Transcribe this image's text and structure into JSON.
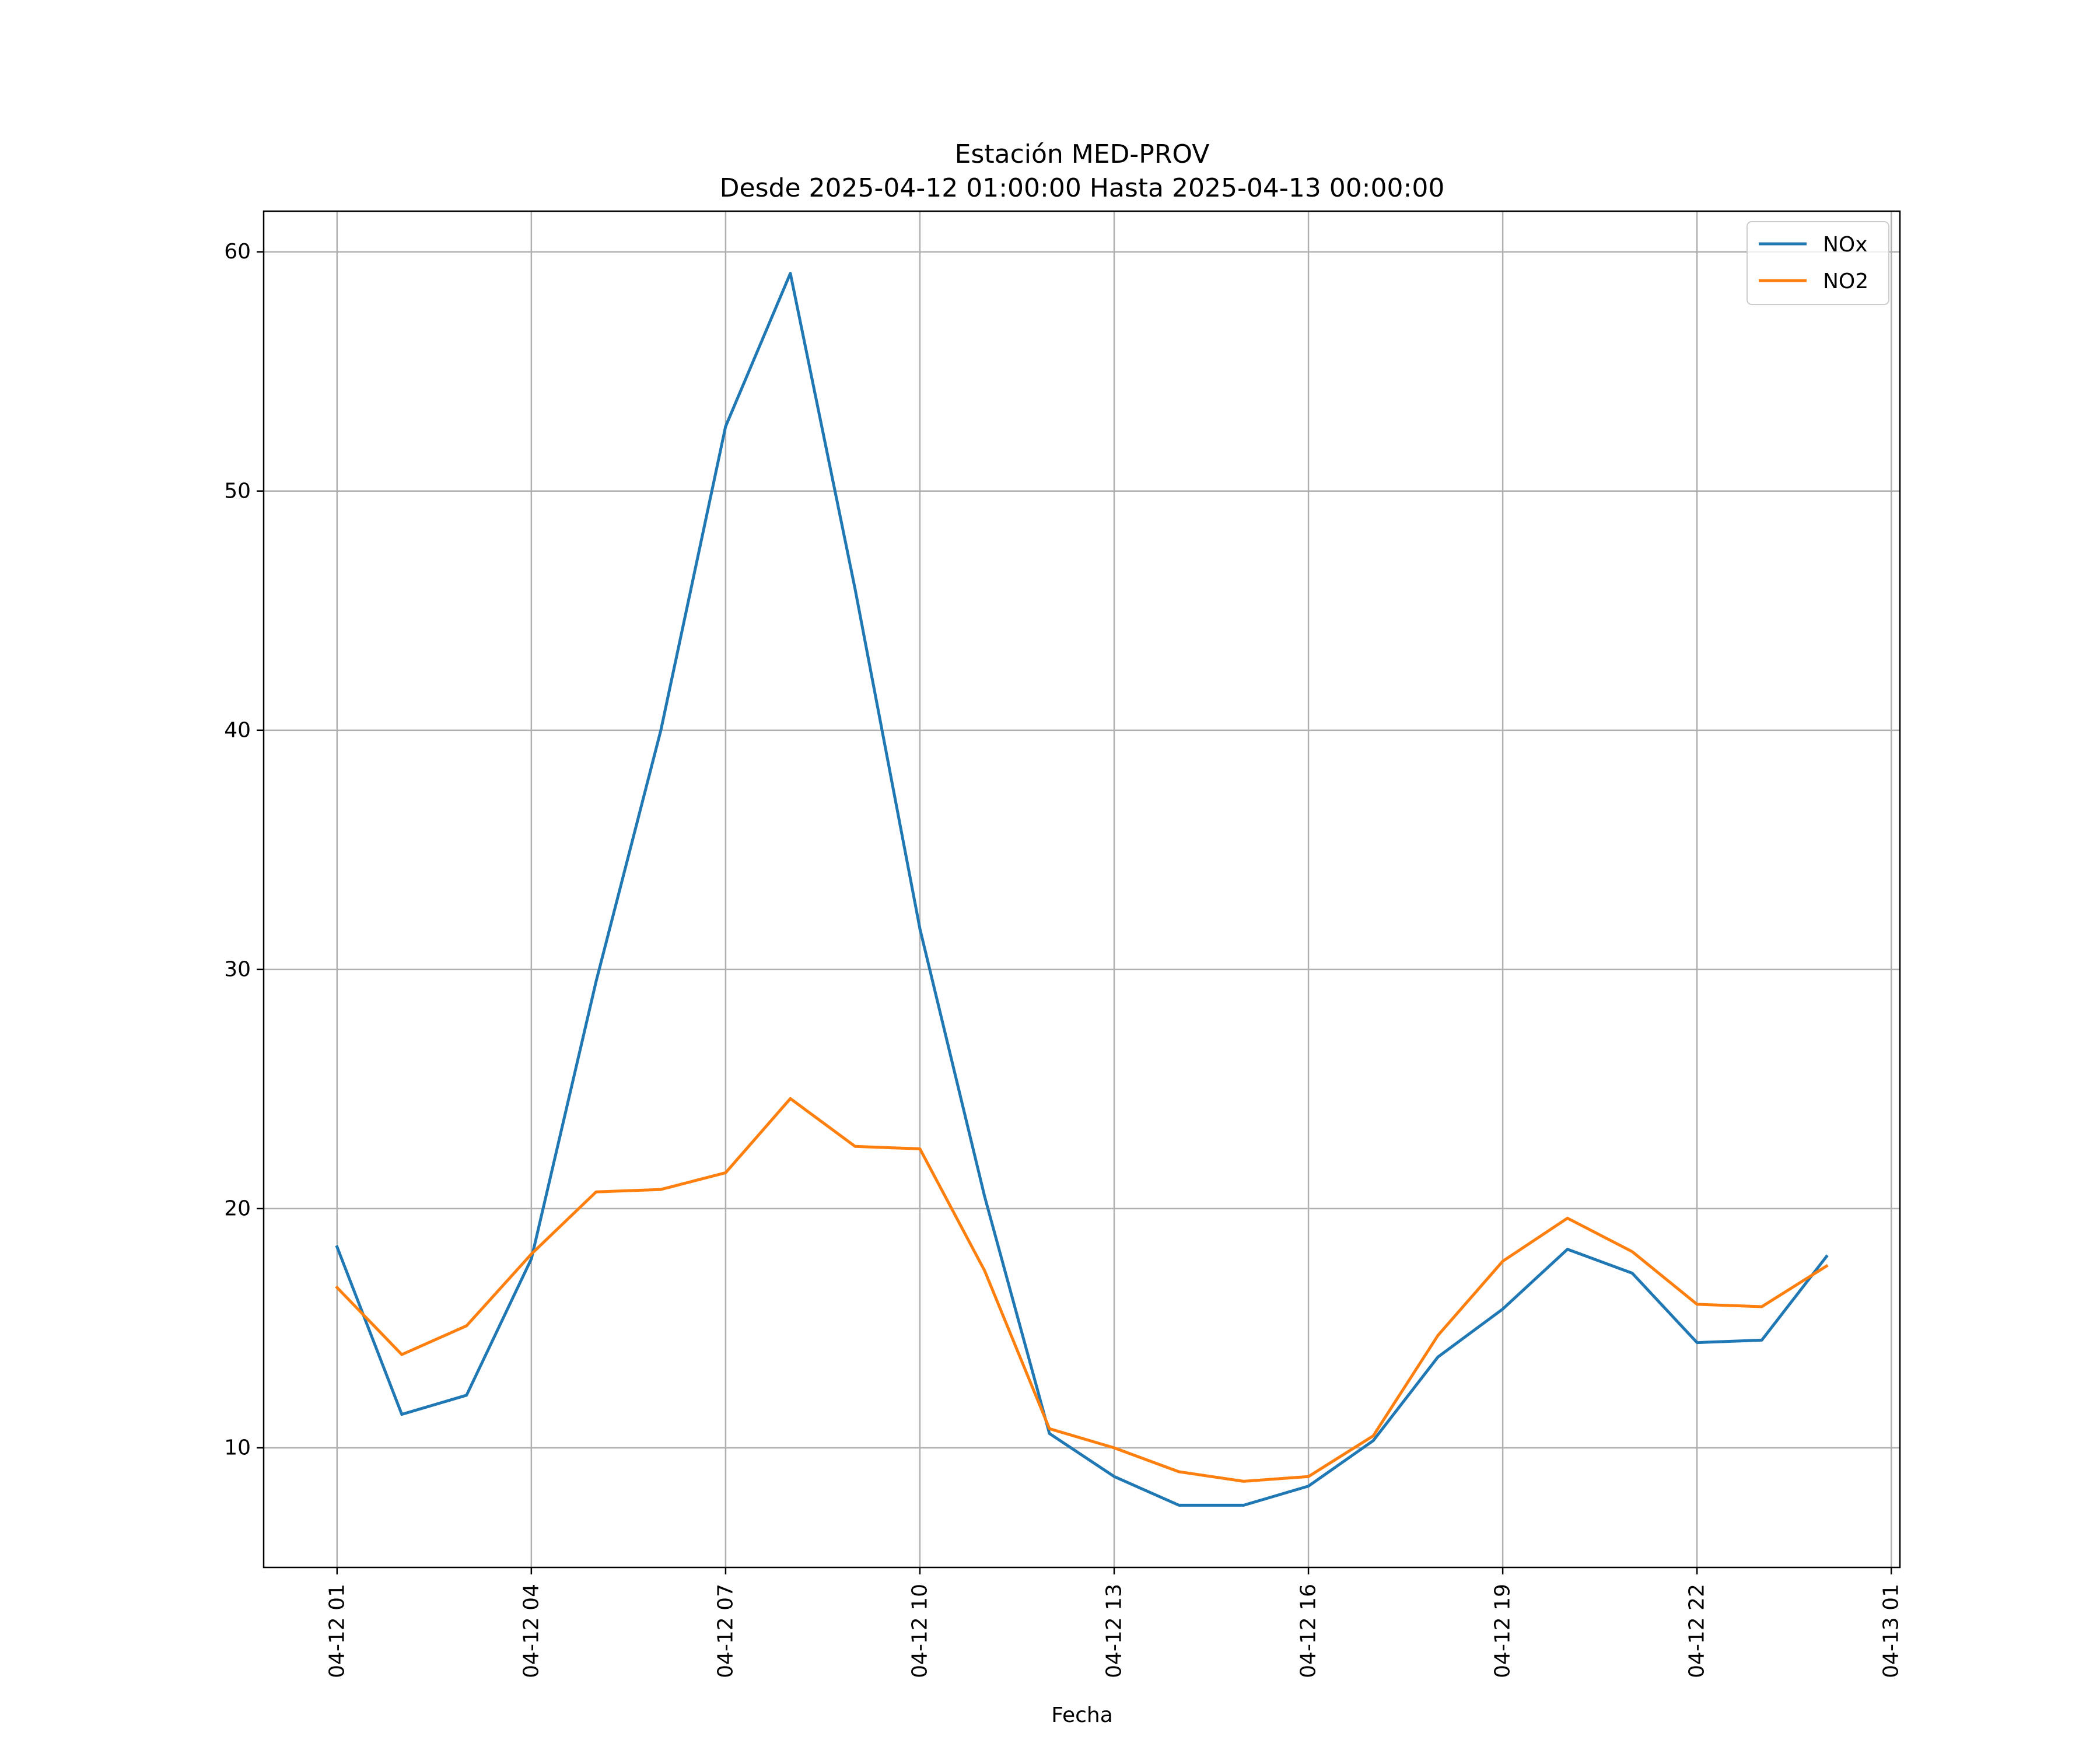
{
  "chart_data": {
    "type": "line",
    "title": "Estación MED-PROV",
    "subtitle": "Desde 2025-04-12 01:00:00 Hasta 2025-04-13 00:00:00",
    "xlabel": "Fecha",
    "ylabel": "",
    "x_tick_labels": [
      "04-12 01",
      "04-12 04",
      "04-12 07",
      "04-12 10",
      "04-12 13",
      "04-12 16",
      "04-12 19",
      "04-12 22",
      "04-13 01"
    ],
    "y_tick_labels": [
      "10",
      "20",
      "30",
      "40",
      "50",
      "60"
    ],
    "x": [
      "2025-04-12 01:00",
      "2025-04-12 02:00",
      "2025-04-12 03:00",
      "2025-04-12 04:00",
      "2025-04-12 05:00",
      "2025-04-12 06:00",
      "2025-04-12 07:00",
      "2025-04-12 08:00",
      "2025-04-12 09:00",
      "2025-04-12 10:00",
      "2025-04-12 11:00",
      "2025-04-12 12:00",
      "2025-04-12 13:00",
      "2025-04-12 14:00",
      "2025-04-12 15:00",
      "2025-04-12 16:00",
      "2025-04-12 17:00",
      "2025-04-12 18:00",
      "2025-04-12 19:00",
      "2025-04-12 20:00",
      "2025-04-12 21:00",
      "2025-04-12 22:00",
      "2025-04-12 23:00",
      "2025-04-13 00:00"
    ],
    "xlim": [
      "2025-04-11 23:52",
      "2025-04-13 01:08"
    ],
    "ylim": [
      5,
      61.7
    ],
    "grid": true,
    "legend_position": "top-right",
    "series": [
      {
        "name": "NOx",
        "color": "#1f77b4",
        "values": [
          18.4,
          11.4,
          12.2,
          17.9,
          29.5,
          40.0,
          52.7,
          59.1,
          45.9,
          31.7,
          20.5,
          10.6,
          8.8,
          7.6,
          7.6,
          8.4,
          10.3,
          13.8,
          15.8,
          18.3,
          17.3,
          14.4,
          14.5,
          18.0
        ]
      },
      {
        "name": "NO2",
        "color": "#ff7f0e",
        "values": [
          16.7,
          13.9,
          15.1,
          18.1,
          20.7,
          20.8,
          21.5,
          24.6,
          22.6,
          22.5,
          17.4,
          10.8,
          10.0,
          9.0,
          8.6,
          8.8,
          10.5,
          14.7,
          17.8,
          19.6,
          18.2,
          16.0,
          15.9,
          17.6
        ]
      }
    ]
  }
}
